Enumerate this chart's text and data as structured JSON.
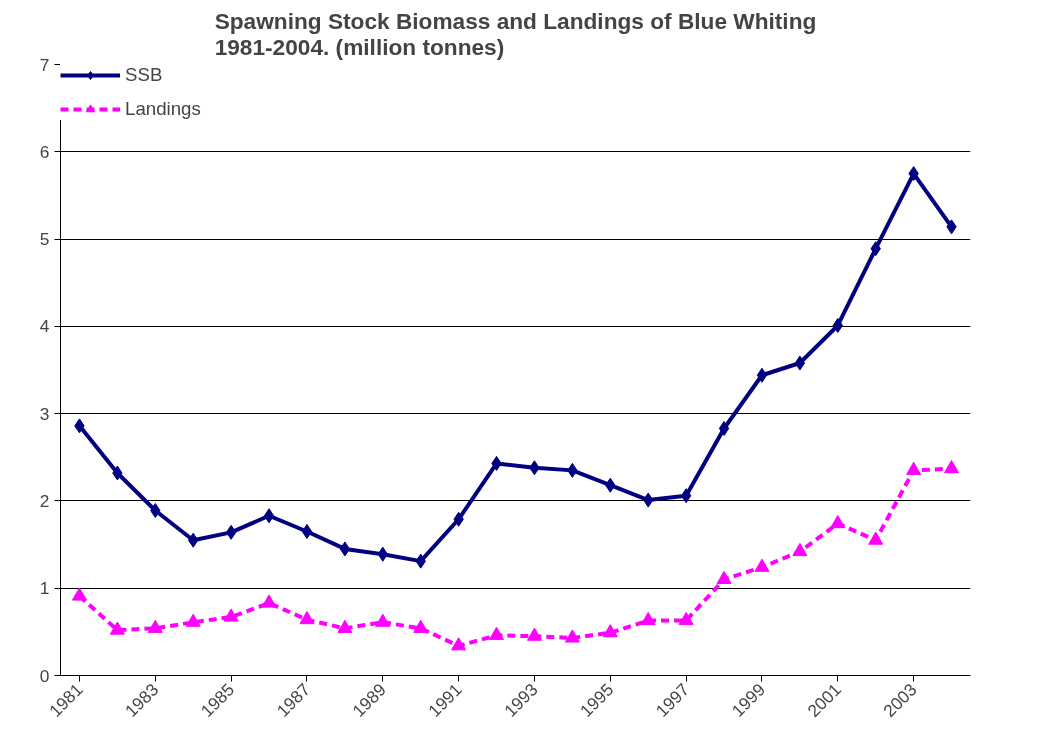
{
  "chart_data": {
    "type": "line",
    "title": "Spawning Stock Biomass and Landings of Blue Whiting 1981-2004. (million tonnes)",
    "x": [
      1981,
      1982,
      1983,
      1984,
      1985,
      1986,
      1987,
      1988,
      1989,
      1990,
      1991,
      1992,
      1993,
      1994,
      1995,
      1996,
      1997,
      1998,
      1999,
      2000,
      2001,
      2002,
      2003,
      2004
    ],
    "series": [
      {
        "name": "SSB",
        "color": "#000080",
        "marker": "diamond",
        "line_style": "solid",
        "values": [
          2.86,
          2.32,
          1.89,
          1.55,
          1.64,
          1.83,
          1.65,
          1.45,
          1.39,
          1.31,
          1.79,
          2.43,
          2.38,
          2.35,
          2.18,
          2.01,
          2.06,
          2.83,
          3.44,
          3.58,
          4.01,
          4.89,
          5.75,
          5.14
        ]
      },
      {
        "name": "Landings",
        "color": "#ff00ff",
        "marker": "triangle",
        "line_style": "dashed",
        "values": [
          0.91,
          0.52,
          0.54,
          0.61,
          0.67,
          0.83,
          0.64,
          0.54,
          0.61,
          0.54,
          0.34,
          0.46,
          0.45,
          0.43,
          0.49,
          0.63,
          0.63,
          1.1,
          1.24,
          1.42,
          1.74,
          1.55,
          2.35,
          2.37
        ]
      }
    ],
    "xlim": [
      1980.5,
      2004.5
    ],
    "xticks": [
      1981,
      1983,
      1985,
      1987,
      1989,
      1991,
      1993,
      1995,
      1997,
      1999,
      2001,
      2003
    ],
    "ylim": [
      0,
      7
    ],
    "yticks": [
      0,
      1,
      2,
      3,
      4,
      5,
      6,
      7
    ],
    "grid": "y",
    "legend": "top left"
  }
}
